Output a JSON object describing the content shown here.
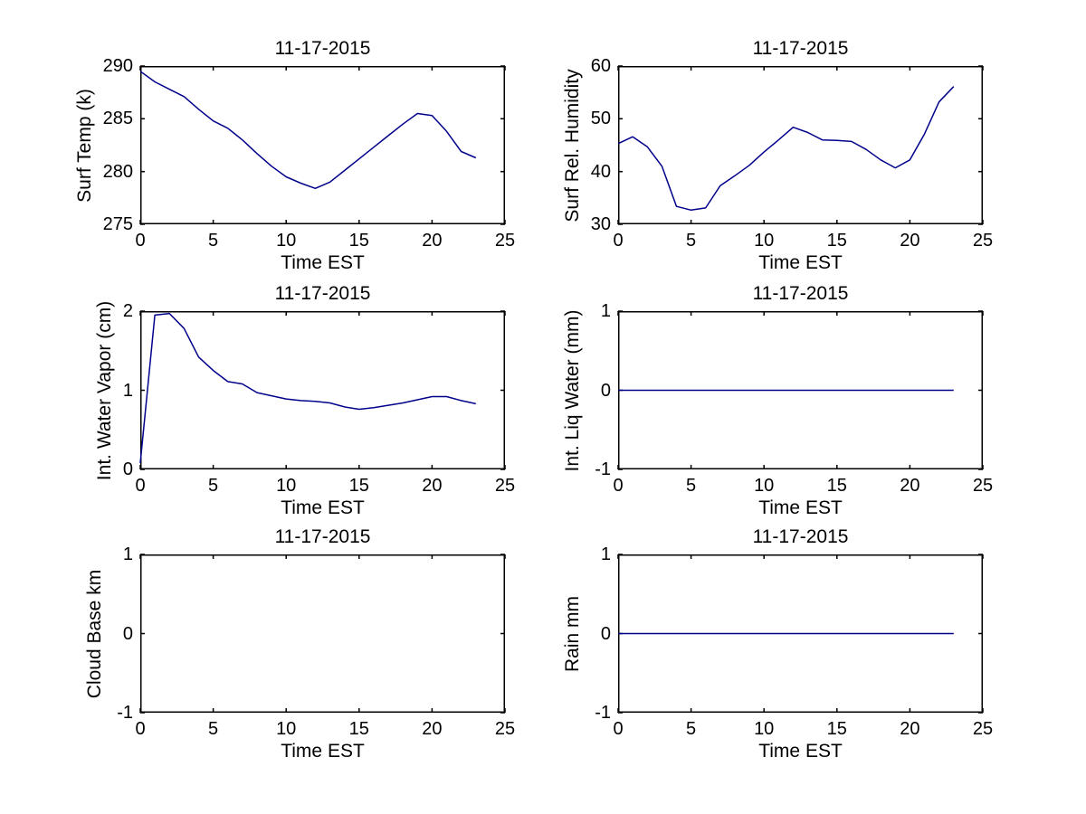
{
  "figure": {
    "background": "#ffffff",
    "axis_color": "#000000",
    "line_color": "#00008B",
    "date_title": "11-17-2015",
    "time_axis_label": "Time EST"
  },
  "chart_data": [
    {
      "type": "line",
      "title": "11-17-2015",
      "xlabel": "Time EST",
      "ylabel": "Surf Temp (k)",
      "xlim": [
        0,
        25
      ],
      "ylim": [
        275,
        290
      ],
      "xticks": [
        0,
        5,
        10,
        15,
        20,
        25
      ],
      "yticks": [
        275,
        280,
        285,
        290
      ],
      "grid": false,
      "legend": "none",
      "x": [
        0,
        1,
        2,
        3,
        4,
        5,
        6,
        7,
        8,
        9,
        10,
        11,
        12,
        13,
        14,
        15,
        16,
        17,
        18,
        19,
        20,
        21,
        22,
        23
      ],
      "y": [
        289.5,
        288.5,
        287.8,
        287.1,
        285.9,
        284.8,
        284.1,
        283.0,
        281.7,
        280.5,
        279.5,
        278.9,
        278.4,
        279.0,
        280.1,
        281.2,
        282.3,
        283.4,
        284.5,
        285.5,
        285.3,
        283.8,
        281.9,
        281.3
      ]
    },
    {
      "type": "line",
      "title": "11-17-2015",
      "xlabel": "Time EST",
      "ylabel": "Surf Rel. Humidity",
      "xlim": [
        0,
        25
      ],
      "ylim": [
        30,
        60
      ],
      "xticks": [
        0,
        5,
        10,
        15,
        20,
        25
      ],
      "yticks": [
        30,
        40,
        50,
        60
      ],
      "grid": false,
      "legend": "none",
      "x": [
        0,
        1,
        2,
        3,
        4,
        5,
        6,
        7,
        8,
        9,
        10,
        11,
        12,
        13,
        14,
        15,
        16,
        17,
        18,
        19,
        20,
        21,
        22,
        23
      ],
      "y": [
        45.3,
        46.6,
        44.7,
        41.0,
        33.4,
        32.7,
        33.1,
        37.3,
        39.2,
        41.2,
        43.7,
        46.0,
        48.4,
        47.4,
        46.0,
        45.9,
        45.7,
        44.2,
        42.2,
        40.7,
        42.2,
        47.1,
        53.2,
        56.1
      ]
    },
    {
      "type": "line",
      "title": "11-17-2015",
      "xlabel": "Time EST",
      "ylabel": "Int. Water Vapor (cm)",
      "xlim": [
        0,
        25
      ],
      "ylim": [
        0,
        2
      ],
      "xticks": [
        0,
        5,
        10,
        15,
        20,
        25
      ],
      "yticks": [
        0,
        1,
        2
      ],
      "grid": false,
      "legend": "none",
      "x": [
        0,
        1,
        2,
        3,
        4,
        5,
        6,
        7,
        8,
        9,
        10,
        11,
        12,
        13,
        14,
        15,
        16,
        17,
        18,
        19,
        20,
        21,
        22,
        23
      ],
      "y": [
        0.08,
        1.95,
        1.97,
        1.78,
        1.42,
        1.25,
        1.11,
        1.08,
        0.97,
        0.93,
        0.89,
        0.87,
        0.86,
        0.84,
        0.79,
        0.76,
        0.78,
        0.81,
        0.84,
        0.88,
        0.92,
        0.92,
        0.87,
        0.83
      ]
    },
    {
      "type": "line",
      "title": "11-17-2015",
      "xlabel": "Time EST",
      "ylabel": "Int. Liq Water (mm)",
      "xlim": [
        0,
        25
      ],
      "ylim": [
        -1,
        1
      ],
      "xticks": [
        0,
        5,
        10,
        15,
        20,
        25
      ],
      "yticks": [
        -1,
        0,
        1
      ],
      "grid": false,
      "legend": "none",
      "x": [
        0,
        1,
        2,
        3,
        4,
        5,
        6,
        7,
        8,
        9,
        10,
        11,
        12,
        13,
        14,
        15,
        16,
        17,
        18,
        19,
        20,
        21,
        22,
        23
      ],
      "y": [
        0,
        0,
        0,
        0,
        0,
        0,
        0,
        0,
        0,
        0,
        0,
        0,
        0,
        0,
        0,
        0,
        0,
        0,
        0,
        0,
        0,
        0,
        0,
        0
      ]
    },
    {
      "type": "line",
      "title": "11-17-2015",
      "xlabel": "Time EST",
      "ylabel": "Cloud Base km",
      "xlim": [
        0,
        25
      ],
      "ylim": [
        -1,
        1
      ],
      "xticks": [
        0,
        5,
        10,
        15,
        20,
        25
      ],
      "yticks": [
        -1,
        0,
        1
      ],
      "grid": false,
      "legend": "none",
      "x": [],
      "y": []
    },
    {
      "type": "line",
      "title": "11-17-2015",
      "xlabel": "Time EST",
      "ylabel": "Rain mm",
      "xlim": [
        0,
        25
      ],
      "ylim": [
        -1,
        1
      ],
      "xticks": [
        0,
        5,
        10,
        15,
        20,
        25
      ],
      "yticks": [
        -1,
        0,
        1
      ],
      "grid": false,
      "legend": "none",
      "x": [
        0,
        1,
        2,
        3,
        4,
        5,
        6,
        7,
        8,
        9,
        10,
        11,
        12,
        13,
        14,
        15,
        16,
        17,
        18,
        19,
        20,
        21,
        22,
        23
      ],
      "y": [
        0,
        0,
        0,
        0,
        0,
        0,
        0,
        0,
        0,
        0,
        0,
        0,
        0,
        0,
        0,
        0,
        0,
        0,
        0,
        0,
        0,
        0,
        0,
        0
      ]
    }
  ]
}
